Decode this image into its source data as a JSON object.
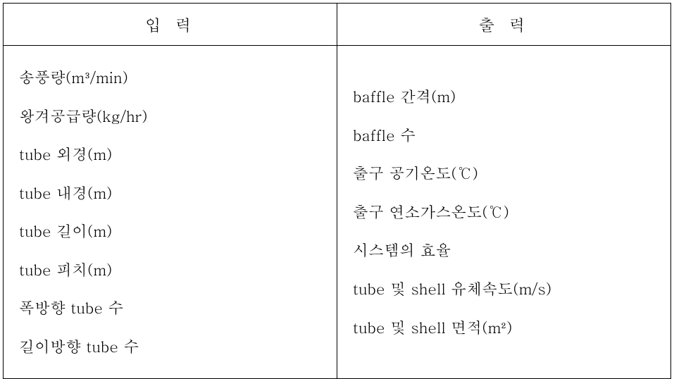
{
  "table": {
    "headers": {
      "input": "입 력",
      "output": "출 력"
    },
    "input_items": [
      "송풍량(m³/min)",
      "왕겨공급량(kg/hr)",
      "tube 외경(m)",
      "tube 내경(m)",
      "tube 길이(m)",
      "tube 피치(m)",
      "폭방향 tube 수",
      "길이방향 tube 수"
    ],
    "output_items": [
      "baffle 간격(m)",
      "baffle 수",
      "출구 공기온도(℃)",
      "출구 연소가스온도(℃)",
      "시스템의 효율",
      "tube 및 shell 유체속도(m/s)",
      "tube 및 shell 면적(m²)"
    ],
    "colors": {
      "border": "#000000",
      "background": "#ffffff",
      "text": "#000000"
    },
    "typography": {
      "header_fontsize": 23,
      "body_fontsize": 22,
      "line_height": 2.48,
      "font_family": "Batang"
    }
  }
}
